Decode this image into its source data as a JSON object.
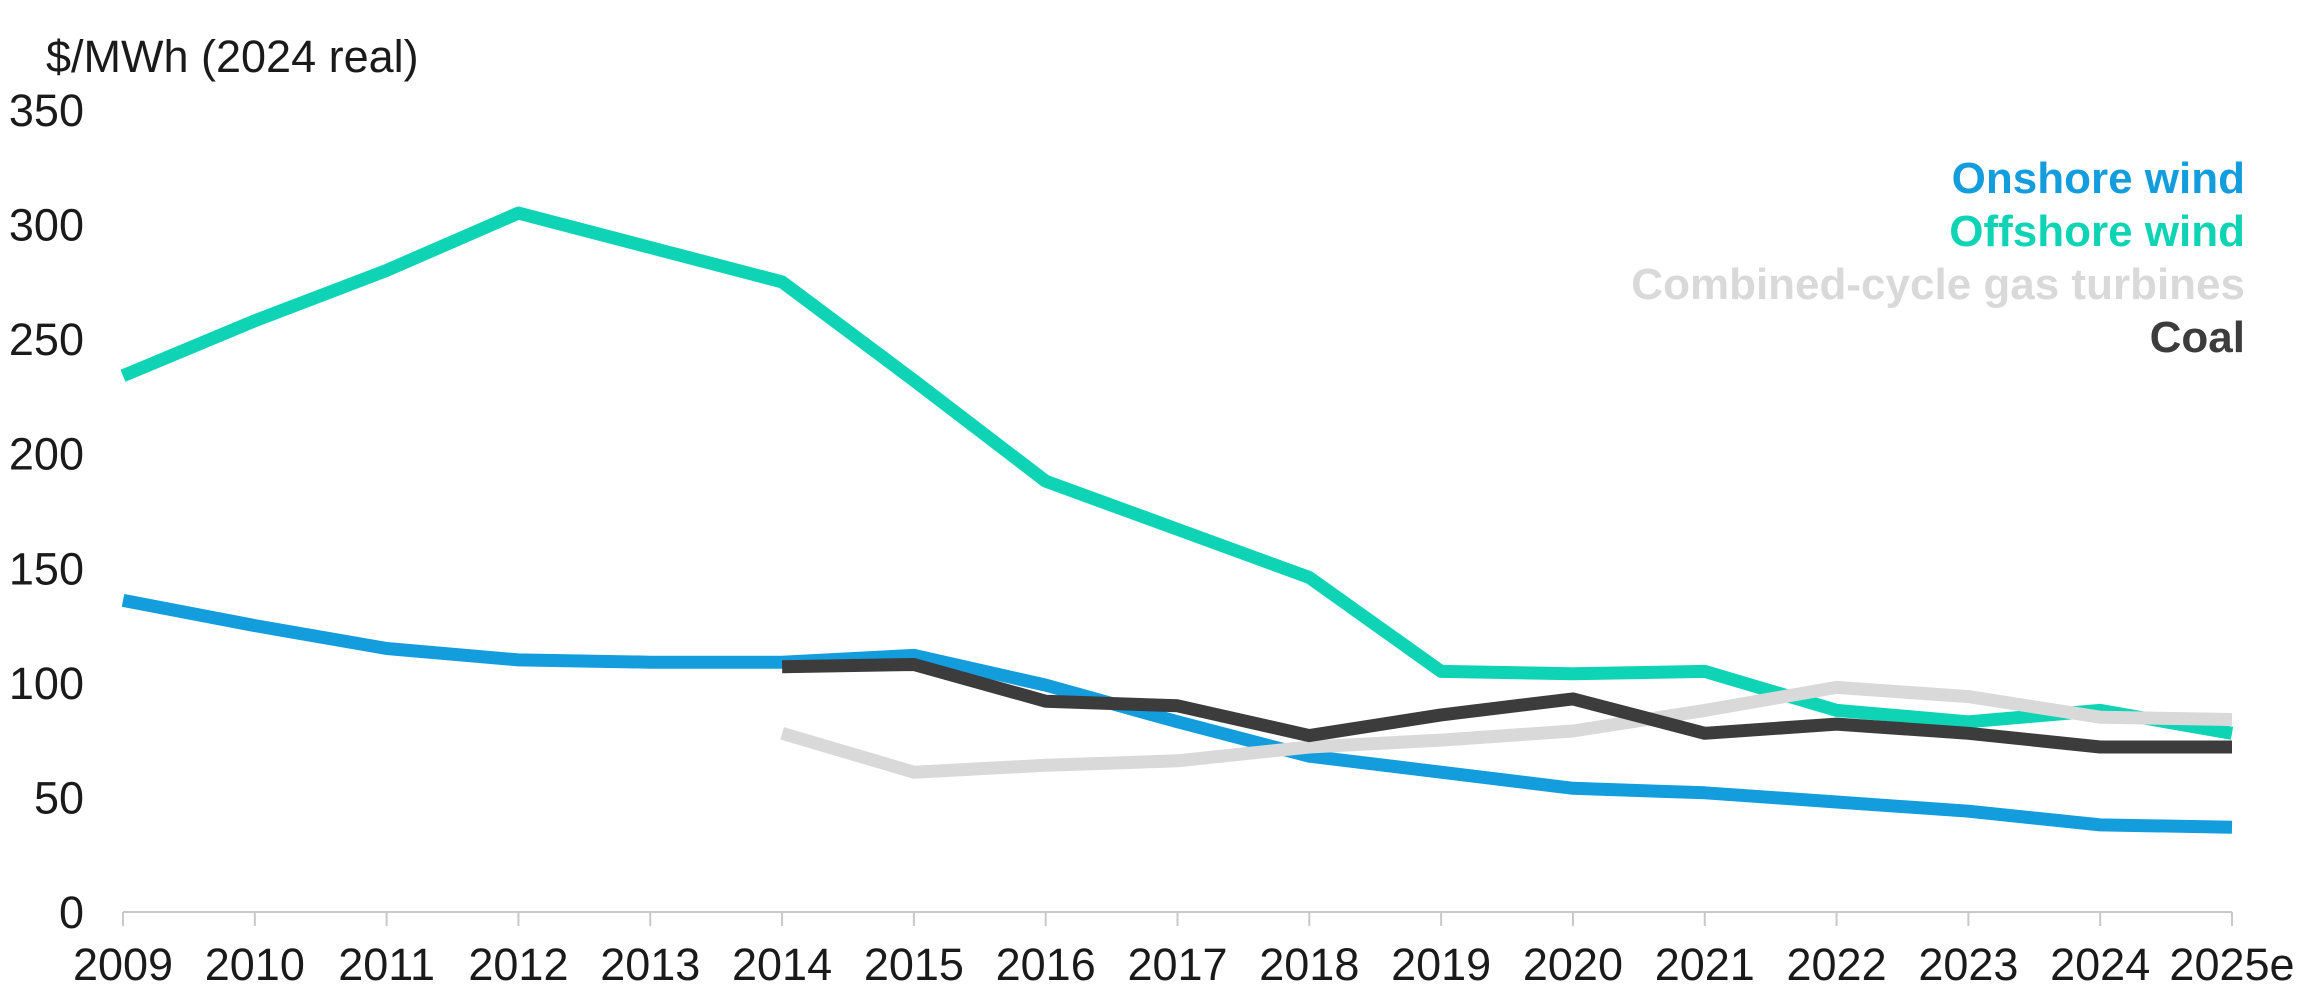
{
  "chart_data": {
    "type": "line",
    "ylabel": "$/MWh (2024 real)",
    "ylim": [
      0,
      350
    ],
    "yticks": [
      "0",
      "50",
      "100",
      "150",
      "200",
      "250",
      "300",
      "350"
    ],
    "categories": [
      "2009",
      "2010",
      "2011",
      "2012",
      "2013",
      "2014",
      "2015",
      "2016",
      "2017",
      "2018",
      "2019",
      "2020",
      "2021",
      "2022",
      "2023",
      "2024",
      "2025e"
    ],
    "legend_position": "top-right",
    "grid": false,
    "series": [
      {
        "name": "Onshore wind",
        "color": "#139DDD",
        "values": [
          136,
          125,
          115,
          110,
          109,
          109,
          112,
          99,
          83,
          68,
          61,
          54,
          52,
          48,
          44,
          38,
          37
        ]
      },
      {
        "name": "Offshore wind",
        "color": "#0ED3B5",
        "values": [
          234,
          258,
          280,
          305,
          290,
          275,
          232,
          188,
          167,
          146,
          105,
          104,
          105,
          88,
          83,
          88,
          78
        ]
      },
      {
        "name": "Combined-cycle gas turbines",
        "color": "#D9D9D9",
        "values": [
          null,
          null,
          null,
          null,
          null,
          78,
          61,
          64,
          66,
          72,
          75,
          79,
          88,
          98,
          94,
          85,
          84
        ]
      },
      {
        "name": "Coal",
        "color": "#3C3C3C",
        "values": [
          null,
          null,
          null,
          null,
          null,
          107,
          108,
          92,
          90,
          77,
          86,
          93,
          78,
          82,
          78,
          72,
          72
        ]
      }
    ]
  }
}
